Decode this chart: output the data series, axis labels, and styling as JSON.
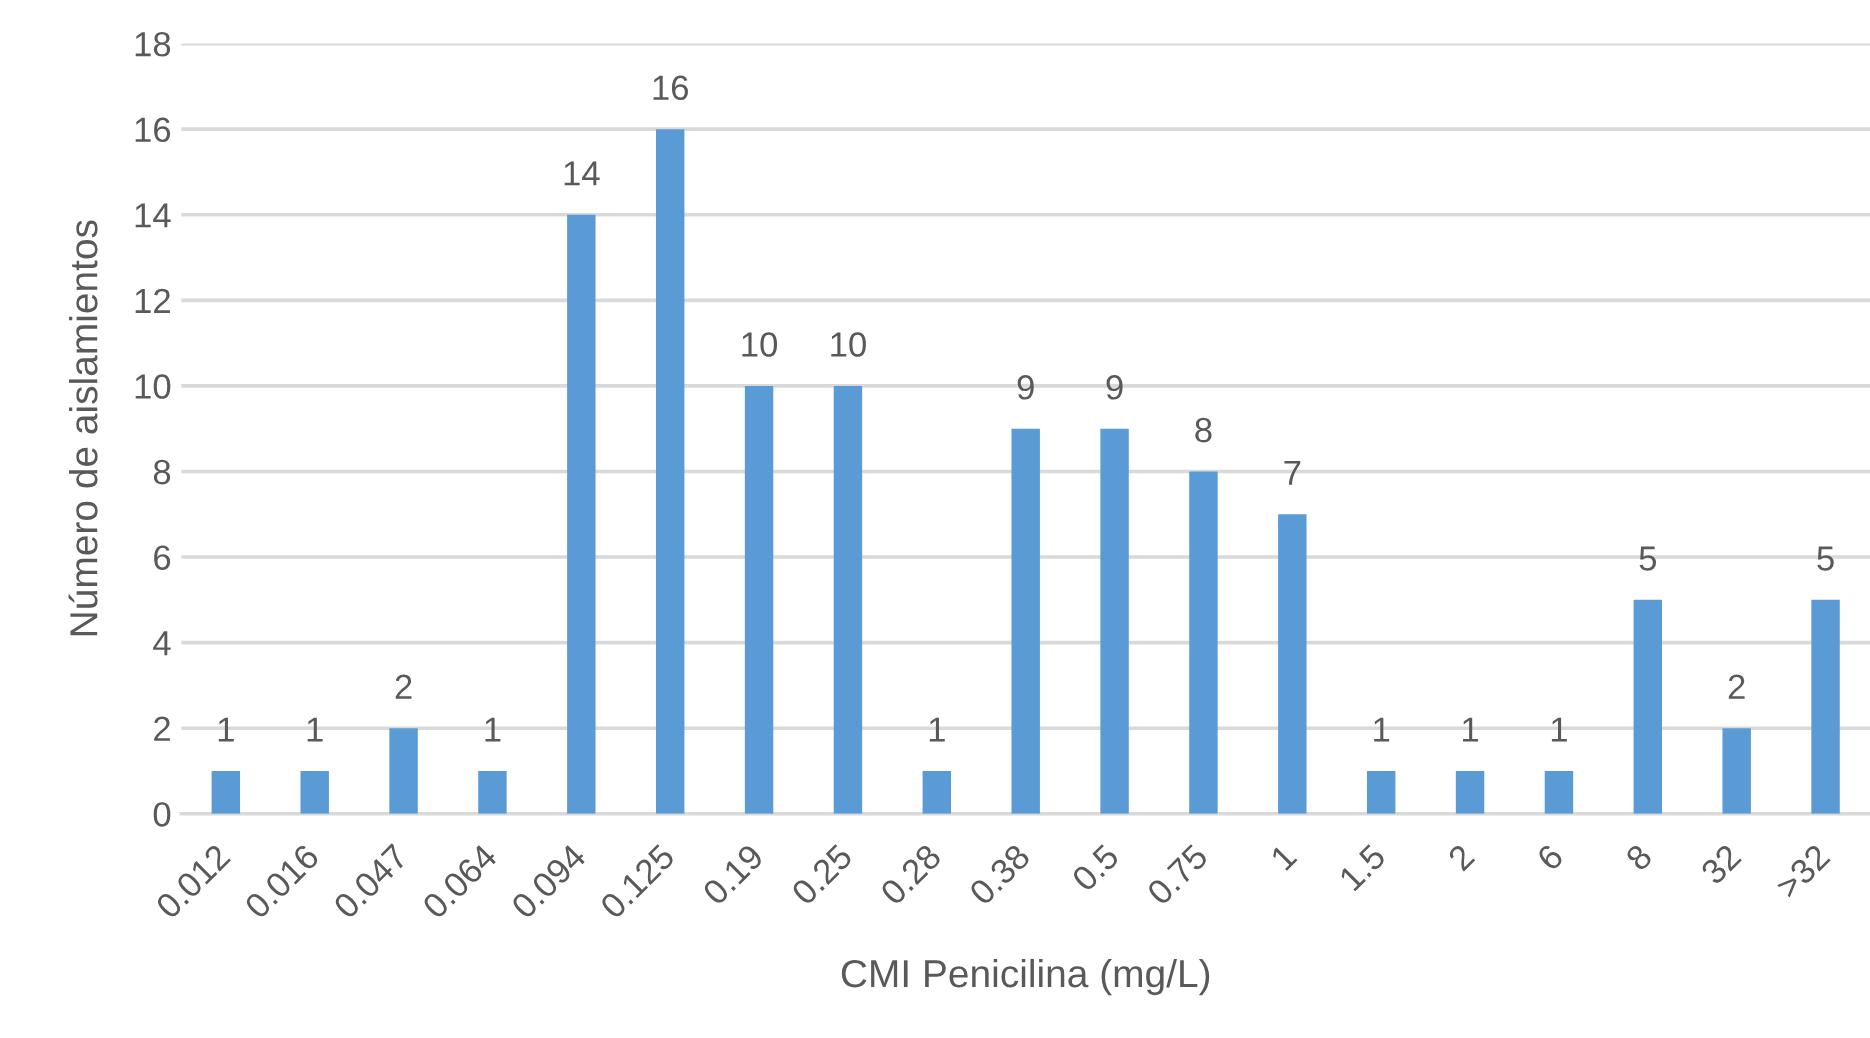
{
  "chart_data": {
    "type": "bar",
    "xlabel": "CMI Penicilina (mg/L)",
    "ylabel": "Número de aislamientos",
    "categories": [
      "0.012",
      "0.016",
      "0.047",
      "0.064",
      "0.094",
      "0.125",
      "0.19",
      "0.25",
      "0.28",
      "0.38",
      "0.5",
      "0.75",
      "1",
      "1.5",
      "2",
      "6",
      "8",
      "32",
      ">32"
    ],
    "values": [
      1,
      1,
      2,
      1,
      14,
      16,
      10,
      10,
      1,
      9,
      9,
      8,
      7,
      1,
      1,
      1,
      5,
      2,
      5
    ],
    "color": "#5b9bd5",
    "ylim": [
      0,
      18
    ],
    "yticks": [
      0,
      2,
      4,
      6,
      8,
      10,
      12,
      14,
      16,
      18
    ],
    "grid": "y",
    "data_labels": true,
    "legend": false
  }
}
